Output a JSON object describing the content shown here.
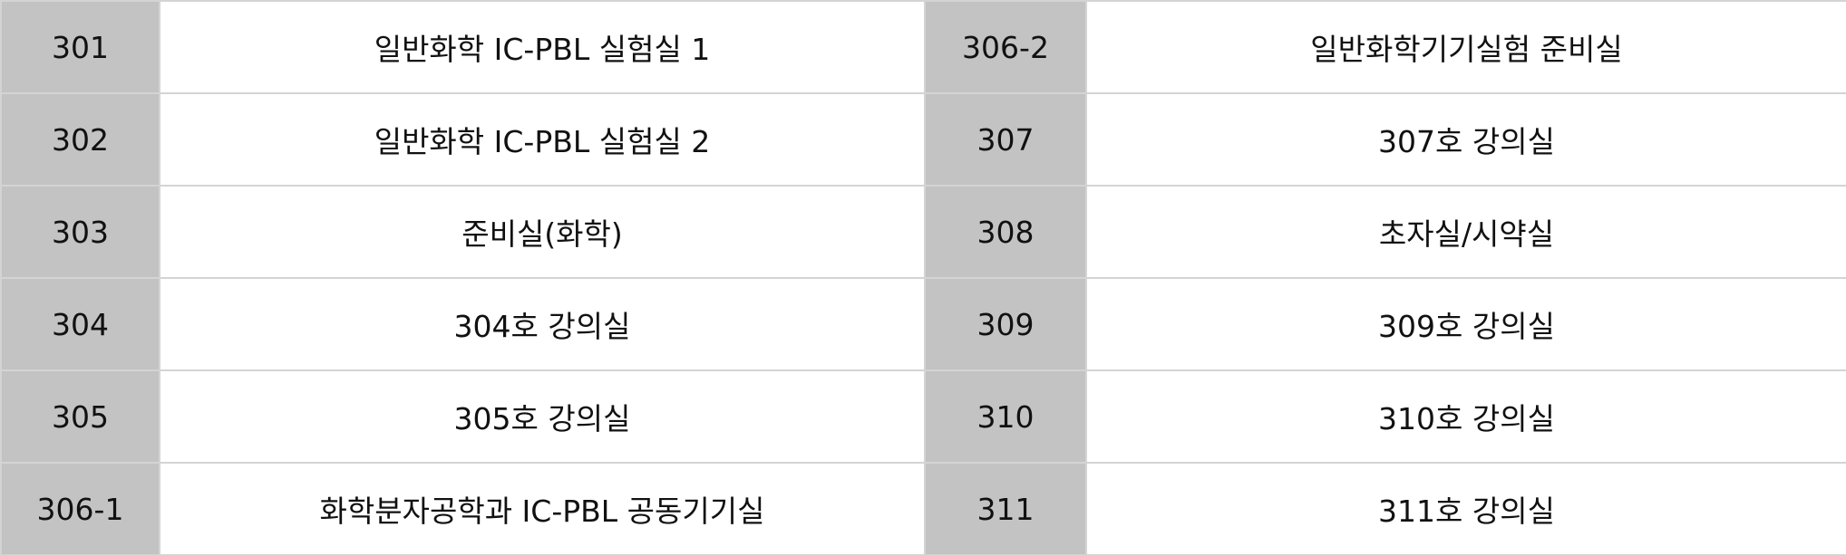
{
  "rooms": {
    "rows": [
      {
        "left_no": "301",
        "left_name": "일반화학 IC-PBL 실험실 1",
        "right_no": "306-2",
        "right_name": "일반화학기기실험 준비실"
      },
      {
        "left_no": "302",
        "left_name": "일반화학 IC-PBL 실험실 2",
        "right_no": "307",
        "right_name": "307호 강의실"
      },
      {
        "left_no": "303",
        "left_name": "준비실(화학)",
        "right_no": "308",
        "right_name": "초자실/시약실"
      },
      {
        "left_no": "304",
        "left_name": "304호 강의실",
        "right_no": "309",
        "right_name": "309호 강의실"
      },
      {
        "left_no": "305",
        "left_name": "305호 강의실",
        "right_no": "310",
        "right_name": "310호 강의실"
      },
      {
        "left_no": "306-1",
        "left_name": "화학분자공학과 IC-PBL 공동기기실",
        "right_no": "311",
        "right_name": "311호 강의실"
      }
    ]
  },
  "colors": {
    "room_number_cell_bg": "#c3c3c3",
    "room_name_cell_bg": "#ffffff",
    "grid_border": "#d4d4d4",
    "text": "#111111"
  }
}
